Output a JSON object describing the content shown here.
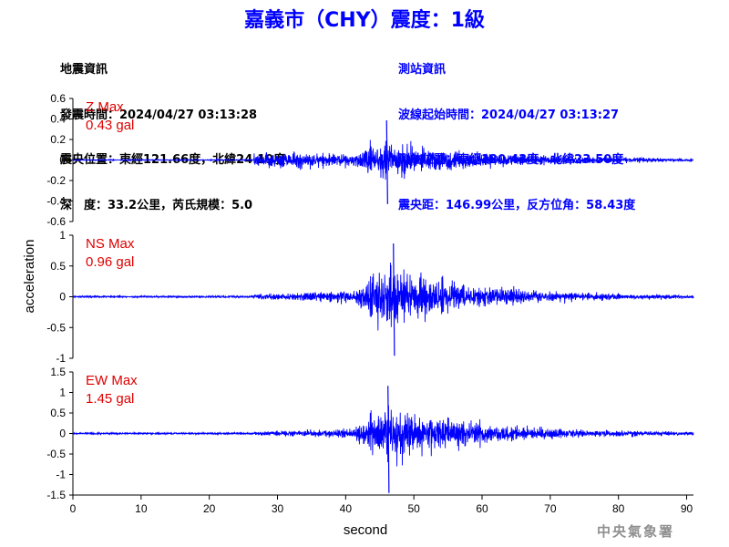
{
  "title": "嘉義市（CHY）震度：1級",
  "quake_info": {
    "heading": "地震資訊",
    "time": "發震時間：2024/04/27 03:13:28",
    "location": "震央位置：東經121.66度，北緯24.19度",
    "depth": "深　度：33.2公里，芮氏規模：5.0"
  },
  "station_info": {
    "heading": "測站資訊",
    "wave_start": "波線起始時間：2024/04/27 03:13:27",
    "location": "測站位置：東經120.43度，北緯23.50度",
    "distance": "震央距：146.99公里，反方位角：58.43度"
  },
  "credit": "中央氣象署",
  "colors": {
    "trace": "#0000ff",
    "max_label": "#e00000",
    "title": "#0000ff"
  },
  "chart_data": {
    "type": "line",
    "xlabel": "second",
    "ylabel": "acceleration",
    "xlim": [
      0,
      91
    ],
    "xticks": [
      0,
      10,
      20,
      30,
      40,
      50,
      60,
      70,
      80,
      90
    ],
    "p_arrival_s": 26.5,
    "s_arrival_s": 45,
    "panels": [
      {
        "component": "Z",
        "label": "Z Max",
        "max": "0.43 gal",
        "peak": 0.43,
        "peak_time_s": 46,
        "ylim": [
          -0.6,
          0.6
        ],
        "yticks": [
          0.6,
          0.4,
          0.2,
          0,
          -0.2,
          -0.4,
          -0.6
        ],
        "yticklabels": [
          "0.6",
          "0.4",
          "0.2",
          "0",
          "-0.2",
          "-0.4",
          "-0.6"
        ]
      },
      {
        "component": "NS",
        "label": "NS Max",
        "max": "0.96 gal",
        "peak": 0.96,
        "peak_time_s": 47,
        "ylim": [
          -1,
          1
        ],
        "yticks": [
          1,
          0.5,
          0,
          -0.5,
          -1
        ],
        "yticklabels": [
          "1",
          "0.5",
          "0",
          "-0.5",
          "-1"
        ]
      },
      {
        "component": "EW",
        "label": "EW Max",
        "max": "1.45 gal",
        "peak": 1.45,
        "peak_time_s": 46.2,
        "ylim": [
          -1.5,
          1.5
        ],
        "yticks": [
          1.5,
          1,
          0.5,
          0,
          -0.5,
          -1,
          -1.5
        ],
        "yticklabels": [
          "1.5",
          "1",
          "0.5",
          "0",
          "-0.5",
          "-1",
          "-1.5"
        ]
      }
    ]
  }
}
